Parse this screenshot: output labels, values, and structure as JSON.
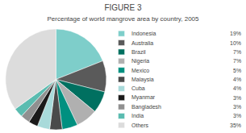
{
  "chart_data": {
    "type": "pie",
    "title": "FIGURE 3",
    "subtitle": "Percentage of world mangrove area by country, 2005",
    "categories": [
      "Indonesia",
      "Australia",
      "Brazil",
      "Nigeria",
      "Mexico",
      "Malaysia",
      "Cuba",
      "Myanmar",
      "Bangladesh",
      "India",
      "Others"
    ],
    "values": [
      19,
      10,
      7,
      7,
      5,
      4,
      4,
      3,
      3,
      3,
      35
    ],
    "value_labels": [
      "19%",
      "10%",
      "7%",
      "7%",
      "5%",
      "4%",
      "4%",
      "3%",
      "3%",
      "3%",
      "35%"
    ],
    "colors": [
      "#7ececa",
      "#5a5a5a",
      "#007060",
      "#b0b0b0",
      "#009080",
      "#4a4a4a",
      "#a8dada",
      "#1a1a1a",
      "#909090",
      "#5abcb0",
      "#dcdcdc"
    ],
    "legend": "right"
  }
}
